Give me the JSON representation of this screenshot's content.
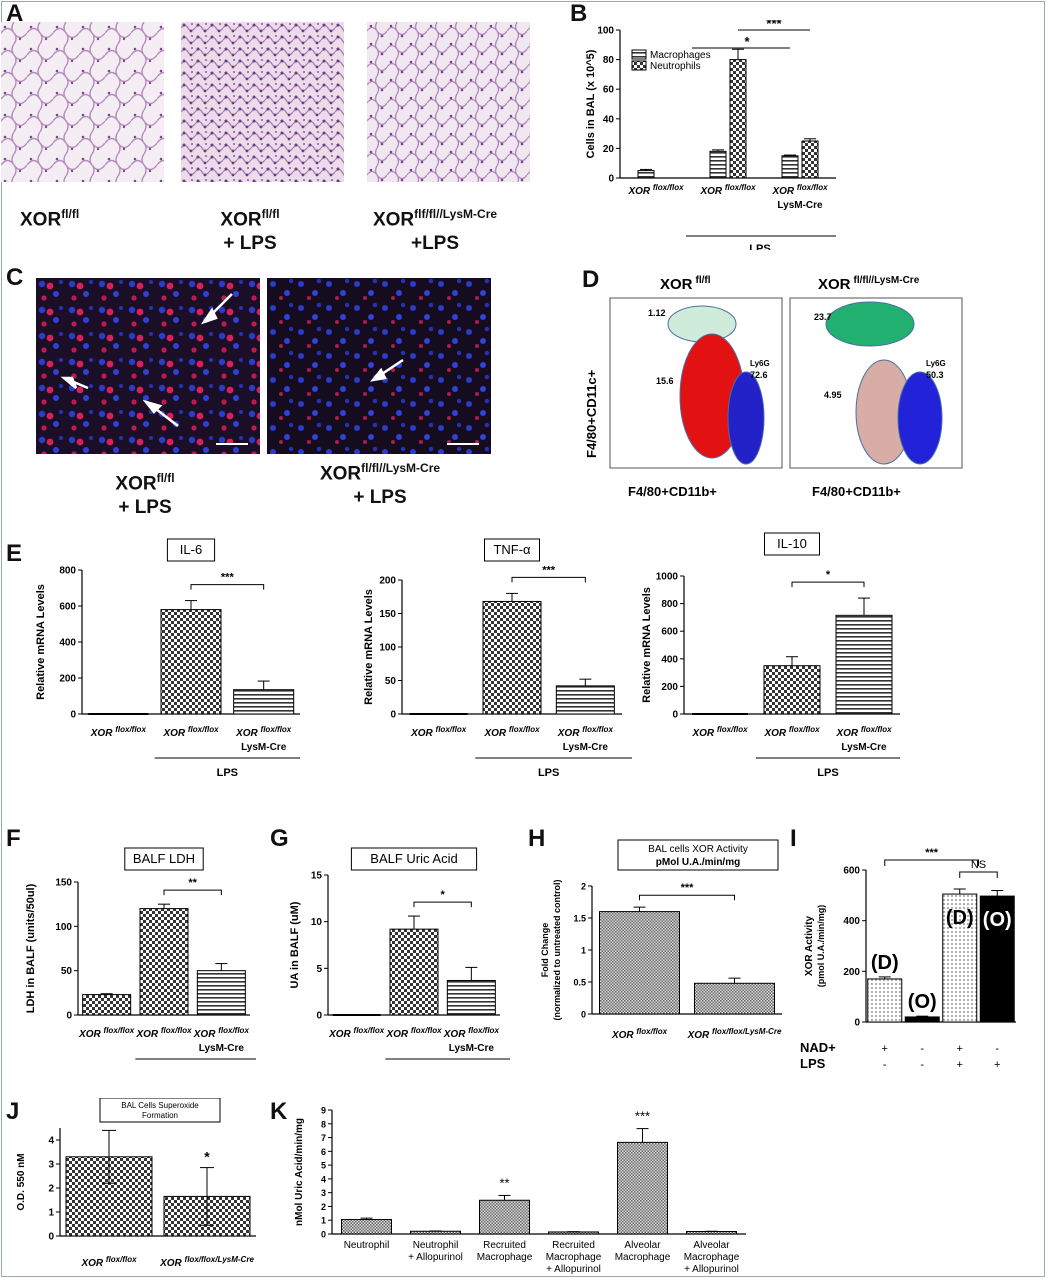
{
  "letters": {
    "A": "A",
    "B": "B",
    "C": "C",
    "D": "D",
    "E": "E",
    "F": "F",
    "G": "G",
    "H": "H",
    "I": "I",
    "J": "J",
    "K": "K"
  },
  "panelA": {
    "captions": [
      {
        "l1": "XOR",
        "s1": "fl/fl",
        "l2": ""
      },
      {
        "l1": "XOR",
        "s1": "fl/fl",
        "l2": "+ LPS"
      },
      {
        "l1": "XOR",
        "s1": "flf/fl//LysM-Cre",
        "l2": "+LPS"
      }
    ]
  },
  "panelC": {
    "captions": [
      {
        "l1": "XOR",
        "s1": "fl/fl",
        "l2": "+ LPS"
      },
      {
        "l1": "XOR",
        "s1": "fl/fl//LysM-Cre",
        "l2": "+ LPS"
      }
    ]
  },
  "panelD": {
    "titles": [
      "XOR",
      "fl/fl",
      "XOR",
      "fl/fl//LysM-Cre"
    ],
    "ylabel": "F4/80+CD11c+",
    "xlabel": "F4/80+CD11b+",
    "gates_left": [
      "1.12",
      "15.6",
      "Ly6G",
      "72.6"
    ],
    "gates_right": [
      "23.7",
      "4.95",
      "Ly6G",
      "50.3"
    ]
  },
  "groups": {
    "flox": "XOR",
    "flox_sup": "flox/flox",
    "lysm": "LysM-Cre",
    "lysm_sup": "flox/flox/LysM-Cre",
    "lps": "LPS"
  },
  "chart_data": [
    {
      "id": "B",
      "type": "bar",
      "ylabel": "Cells in BAL (x 10^5)",
      "ylim": [
        0,
        100
      ],
      "yticks": [
        0,
        20,
        40,
        60,
        80,
        100
      ],
      "categories": [
        "XOR flox/flox",
        "XOR flox/flox + LPS",
        "XOR flox/flox LysM-Cre + LPS"
      ],
      "series": [
        {
          "name": "Macrophages",
          "values": [
            5,
            18,
            15
          ],
          "errors": [
            0.8,
            1,
            0.5
          ]
        },
        {
          "name": "Neutrophils",
          "values": [
            0,
            80,
            25
          ],
          "errors": [
            0,
            7,
            1.5
          ]
        }
      ],
      "annotations": [
        "*",
        "***"
      ],
      "group_label": "LPS",
      "legend": "top-left"
    },
    {
      "id": "E1",
      "type": "bar",
      "title": "IL-6",
      "ylabel": "Relative mRNA Levels",
      "ylim": [
        0,
        800
      ],
      "yticks": [
        0,
        200,
        400,
        600,
        800
      ],
      "categories": [
        "XOR flox/flox",
        "XOR flox/flox + LPS",
        "XOR flox/flox LysM-Cre + LPS"
      ],
      "values": [
        0,
        580,
        135
      ],
      "errors": [
        0,
        50,
        48
      ],
      "annotation": "***",
      "group_label": "LPS"
    },
    {
      "id": "E2",
      "type": "bar",
      "title": "TNF-α",
      "ylabel": "Relative mRNA Levels",
      "ylim": [
        0,
        200
      ],
      "yticks": [
        0,
        50,
        100,
        150,
        200
      ],
      "categories": [
        "XOR flox/flox",
        "XOR flox/flox + LPS",
        "XOR flox/flox LysM-Cre + LPS"
      ],
      "values": [
        0,
        168,
        42
      ],
      "errors": [
        0,
        12,
        10
      ],
      "annotation": "***",
      "group_label": "LPS"
    },
    {
      "id": "E3",
      "type": "bar",
      "title": "IL-10",
      "ylabel": "Relative mRNA Levels",
      "ylim": [
        0,
        1000
      ],
      "yticks": [
        0,
        200,
        400,
        600,
        800,
        1000
      ],
      "categories": [
        "XOR flox/flox",
        "XOR flox/flox + LPS",
        "XOR flox/flox LysM-Cre + LPS"
      ],
      "values": [
        0,
        350,
        715
      ],
      "errors": [
        0,
        65,
        125
      ],
      "annotation": "*",
      "group_label": "LPS"
    },
    {
      "id": "F",
      "type": "bar",
      "title": "BALF LDH",
      "ylabel": "LDH in BALF (units/50ul)",
      "ylim": [
        0,
        150
      ],
      "yticks": [
        0,
        50,
        100,
        150
      ],
      "categories": [
        "XOR flox/flox",
        "XOR flox/flox + LPS",
        "XOR flox/flox LysM-Cre + LPS"
      ],
      "values": [
        23,
        120,
        50
      ],
      "errors": [
        1,
        5,
        8
      ],
      "annotation": "**",
      "group_label": "LPS"
    },
    {
      "id": "G",
      "type": "bar",
      "title": "BALF Uric Acid",
      "ylabel": "UA in BALF (uM)",
      "ylim": [
        0,
        15
      ],
      "yticks": [
        0,
        5,
        10,
        15
      ],
      "categories": [
        "XOR flox/flox",
        "XOR flox/flox + LPS",
        "XOR flox/flox LysM-Cre + LPS"
      ],
      "values": [
        0,
        9.2,
        3.7
      ],
      "errors": [
        0,
        1.4,
        1.4
      ],
      "annotation": "*",
      "group_label": "LPS"
    },
    {
      "id": "H",
      "type": "bar",
      "title": "BAL cells XOR Activity",
      "subtitle": "pMol U.A./min/mg",
      "ylabel": "Fold Change",
      "ylabel2": "(normalized to untreated control)",
      "ylim": [
        0,
        2.0
      ],
      "yticks": [
        0.0,
        0.5,
        1.0,
        1.5,
        2.0
      ],
      "categories": [
        "XOR flox/flox",
        "XOR flox/flox/LysM-Cre"
      ],
      "values": [
        1.6,
        0.48
      ],
      "errors": [
        0.07,
        0.08
      ],
      "annotation": "***"
    },
    {
      "id": "I",
      "type": "bar",
      "ylabel": "XOR Activity",
      "ylabel2": "(pmol U.A./min/mg)",
      "ylim": [
        0,
        600
      ],
      "yticks": [
        0,
        200,
        400,
        600
      ],
      "categories": [
        "D",
        "O",
        "D",
        "O"
      ],
      "bar_labels": [
        "(D)",
        "(O)",
        "(D)",
        "(O)"
      ],
      "values": [
        170,
        20,
        505,
        497
      ],
      "errors": [
        8,
        3,
        20,
        22
      ],
      "rows": [
        {
          "name": "NAD+",
          "values": [
            "+",
            "-",
            "+",
            "-"
          ]
        },
        {
          "name": "LPS",
          "values": [
            "-",
            "-",
            "+",
            "+"
          ]
        }
      ],
      "annotations": [
        "***",
        "NS"
      ]
    },
    {
      "id": "J",
      "type": "bar",
      "title": "BAL Cells Superoxide",
      "title2": "Formation",
      "ylabel": "O.D. 550 nM",
      "ylim": [
        0,
        4.5
      ],
      "yticks": [
        0,
        1,
        2,
        3,
        4
      ],
      "categories": [
        "XOR flox/flox",
        "XOR flox/flox/LysM-Cre"
      ],
      "values": [
        3.3,
        1.65
      ],
      "errors": [
        1.1,
        1.2
      ],
      "annotation": "*"
    },
    {
      "id": "K",
      "type": "bar",
      "ylabel": "nMol Uric Acid/min/mg",
      "ylim": [
        0,
        9
      ],
      "yticks": [
        0,
        1,
        2,
        3,
        4,
        5,
        6,
        7,
        8,
        9
      ],
      "categories": [
        "Neutrophil",
        "Neutrophil + Allopurinol",
        "Recruited Macrophage",
        "Recruited Macrophage + Allopurinol",
        "Alveolar Macrophage",
        "Alveolar Macrophage + Allopurinol"
      ],
      "values": [
        1.05,
        0.2,
        2.45,
        0.15,
        6.65,
        0.18
      ],
      "errors": [
        0.1,
        0.02,
        0.35,
        0.02,
        1.0,
        0.02
      ],
      "annotations": [
        "",
        "",
        "**",
        "",
        "***",
        ""
      ]
    }
  ]
}
